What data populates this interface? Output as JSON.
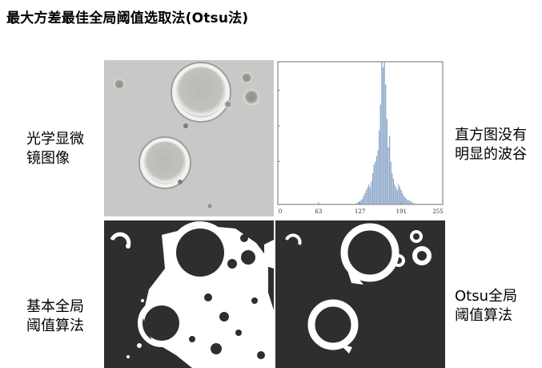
{
  "title": "最大方差最佳全局阈值选取法(Otsu法)",
  "labels": {
    "microscope": [
      "光学显微",
      "镜图像"
    ],
    "histogram_note": [
      "直方图没有",
      "明显的波谷"
    ],
    "basic_global": [
      "基本全局",
      "阈值算法"
    ],
    "otsu_global": [
      "Otsu全局",
      "阈值算法"
    ]
  },
  "colors": {
    "histogram_bar": "#8fa9c9",
    "binary_foreground": "#ffffff",
    "binary_background": "#2e2e2e",
    "micrograph_background": "#c8c9c7"
  },
  "chart_data": {
    "type": "bar",
    "title": "",
    "xlabel": "",
    "ylabel": "",
    "x_ticks": [
      0,
      63,
      127,
      191,
      255
    ],
    "xlim": [
      0,
      255
    ],
    "ylim": [
      0,
      100
    ],
    "bins": [
      120,
      122,
      124,
      126,
      128,
      130,
      132,
      134,
      136,
      138,
      140,
      142,
      144,
      146,
      148,
      150,
      152,
      154,
      156,
      158,
      160,
      162,
      164,
      166,
      168,
      170,
      172,
      174,
      176,
      178,
      180,
      182,
      184,
      186,
      188,
      190,
      192,
      194,
      196,
      198,
      200,
      202,
      204,
      206,
      208,
      210
    ],
    "values": [
      1,
      1,
      2,
      2,
      3,
      4,
      6,
      8,
      10,
      12,
      14,
      12,
      16,
      22,
      28,
      30,
      34,
      38,
      52,
      70,
      100,
      96,
      100,
      84,
      60,
      40,
      48,
      30,
      22,
      18,
      14,
      12,
      10,
      14,
      12,
      10,
      8,
      6,
      5,
      4,
      3,
      3,
      2,
      2,
      1,
      1
    ]
  }
}
